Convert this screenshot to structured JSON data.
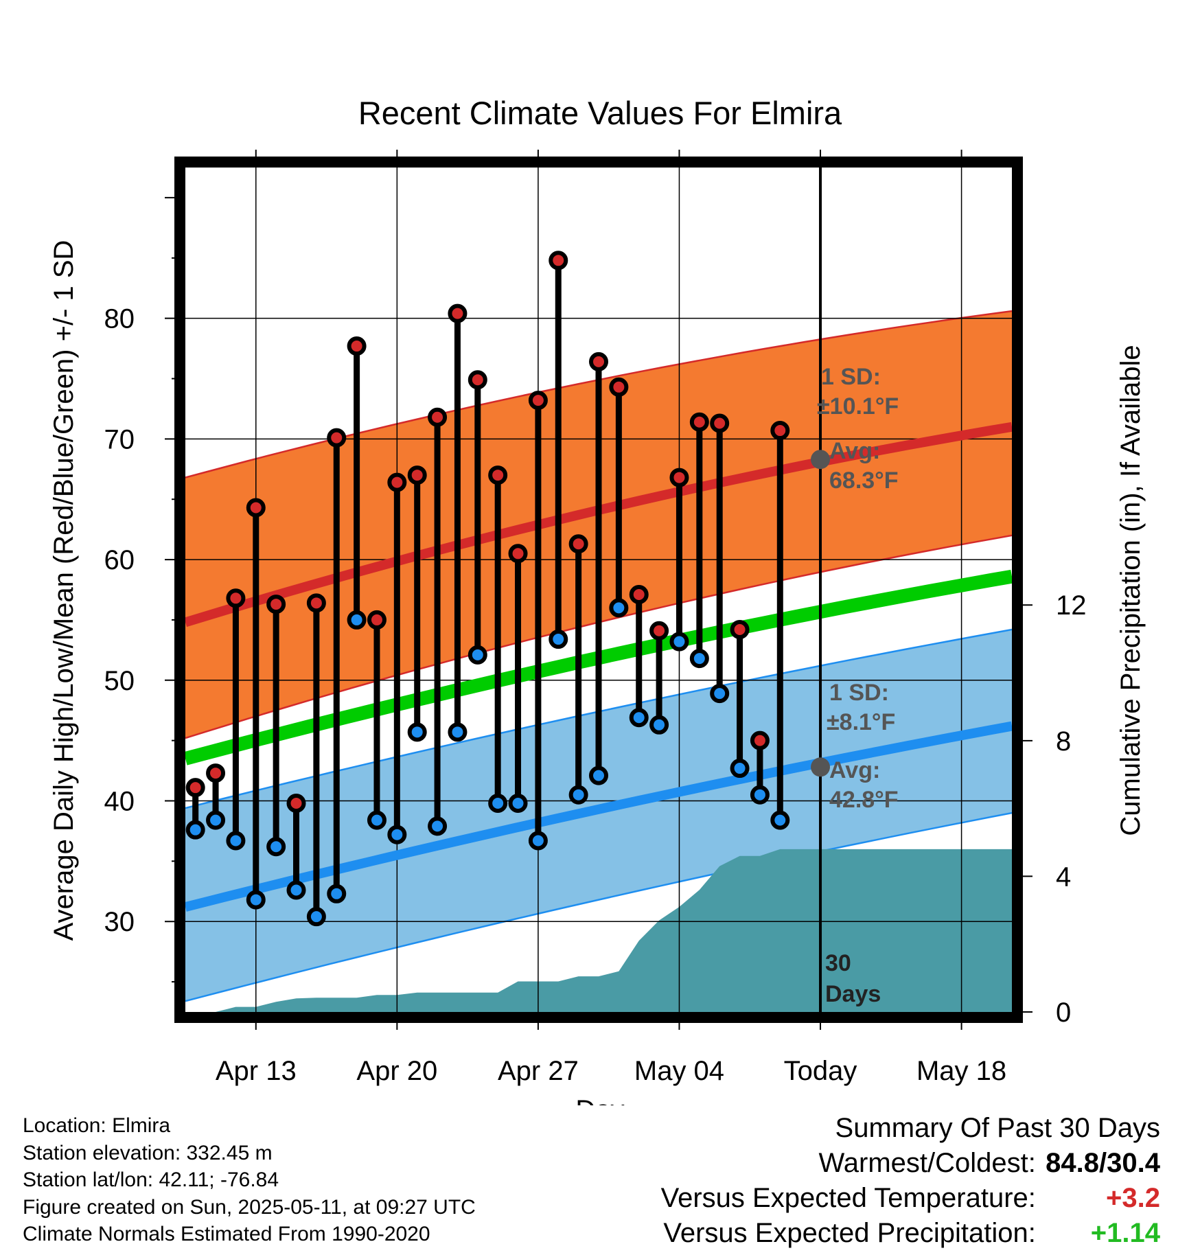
{
  "chart_data": {
    "type": "line",
    "title": "Recent Climate Values For Elmira",
    "xlabel": "Day",
    "ylabel": "Average Daily High/Low/Mean (Red/Blue/Green) +/- 1 SD",
    "y2label": "Cumulative Precipitation (in), If Available",
    "x_tick_labels": [
      "Apr 13",
      "Apr 20",
      "Apr 27",
      "May 04",
      "Today",
      "May 18"
    ],
    "x_tick_days": [
      3,
      10,
      17,
      24,
      31,
      38
    ],
    "xlim": [
      -0.5,
      40.5
    ],
    "ylim": [
      22.5,
      92.5
    ],
    "y_ticks": [
      30,
      40,
      50,
      60,
      70,
      80
    ],
    "y2lim": [
      0,
      24.9
    ],
    "y2_ticks": [
      0,
      4,
      8,
      12
    ],
    "grid": true,
    "today_day": 31,
    "window_label": [
      "30",
      "Days"
    ],
    "normal_high": {
      "mean_start": 54.8,
      "mean_end": 71.0,
      "sd_low_start": 45.2,
      "sd_low_end": 62.0,
      "sd_high_start": 66.8,
      "sd_high_end": 80.6,
      "color": "#f47a30",
      "line_color": "#d42a2a"
    },
    "normal_low": {
      "mean_start": 31.2,
      "mean_end": 46.2,
      "sd_low_start": 23.4,
      "sd_low_end": 39.0,
      "sd_high_start": 39.4,
      "sd_high_end": 54.2,
      "color": "#85c1e6",
      "line_color": "#1e8ef0"
    },
    "normal_mean": {
      "start": 43.5,
      "end": 58.6,
      "color": "#00cc00"
    },
    "annotations": {
      "high_sd": [
        "1 SD:",
        "±10.1°F"
      ],
      "high_avg": [
        "Avg:",
        "68.3°F"
      ],
      "high_avg_value": 68.3,
      "low_sd": [
        "1 SD:",
        "±8.1°F"
      ],
      "low_avg": [
        "Avg:",
        "42.8°F"
      ],
      "low_avg_value": 42.8
    },
    "daily": {
      "days": [
        0,
        1,
        2,
        3,
        4,
        5,
        6,
        7,
        8,
        9,
        10,
        11,
        12,
        13,
        14,
        15,
        16,
        17,
        18,
        19,
        20,
        21,
        22,
        23,
        24,
        25,
        26,
        27,
        28,
        29
      ],
      "high": [
        41.1,
        42.3,
        56.8,
        64.3,
        56.3,
        39.8,
        56.4,
        70.1,
        77.7,
        55.0,
        66.4,
        67.0,
        71.8,
        80.4,
        74.9,
        67.0,
        60.5,
        73.2,
        84.8,
        61.3,
        76.4,
        74.3,
        57.1,
        54.1,
        66.8,
        71.4,
        71.3,
        54.2,
        45.0,
        70.7
      ],
      "low": [
        37.6,
        38.4,
        36.7,
        31.8,
        36.2,
        32.6,
        30.4,
        32.3,
        55.0,
        38.4,
        37.2,
        45.7,
        37.9,
        45.7,
        52.1,
        39.8,
        39.8,
        36.7,
        53.4,
        40.5,
        42.1,
        56.0,
        46.9,
        46.3,
        53.2,
        51.8,
        48.9,
        42.7,
        40.5,
        38.4
      ],
      "high_color": "#d42a2a",
      "low_color": "#1e8ef0"
    },
    "precip": {
      "days": [
        0,
        1,
        2,
        3,
        4,
        5,
        6,
        7,
        8,
        9,
        10,
        11,
        12,
        13,
        14,
        15,
        16,
        17,
        18,
        19,
        20,
        21,
        22,
        23,
        24,
        25,
        26,
        27,
        28,
        29,
        30,
        31,
        32,
        33,
        34,
        35,
        36,
        37,
        38,
        39,
        40
      ],
      "cumulative": [
        0.0,
        0.0,
        0.15,
        0.15,
        0.3,
        0.4,
        0.42,
        0.42,
        0.42,
        0.5,
        0.5,
        0.57,
        0.57,
        0.57,
        0.57,
        0.57,
        0.9,
        0.9,
        0.9,
        1.05,
        1.05,
        1.2,
        2.1,
        2.7,
        3.1,
        3.6,
        4.3,
        4.6,
        4.6,
        4.8,
        4.8,
        4.8,
        4.8,
        4.8,
        4.8,
        4.8,
        4.8,
        4.8,
        4.8,
        4.8,
        4.8
      ],
      "color": "#4a9ba5"
    }
  },
  "footer": {
    "location": "Location: Elmira",
    "elevation": "Station elevation: 332.45 m",
    "latlon": "Station lat/lon: 42.11; -76.84",
    "created": "Figure created on Sun, 2025-05-11, at 09:27 UTC",
    "normals": "Climate Normals Estimated From 1990-2020"
  },
  "summary": {
    "title": "Summary Of Past 30 Days",
    "warmest_label": "Warmest/Coldest:",
    "warmest_value": "84.8/30.4",
    "temp_label": "Versus Expected Temperature:",
    "temp_value": "+3.2",
    "temp_color": "#d42a2a",
    "precip_label": "Versus Expected Precipitation:",
    "precip_value": "+1.14",
    "precip_color": "#22bb22"
  }
}
